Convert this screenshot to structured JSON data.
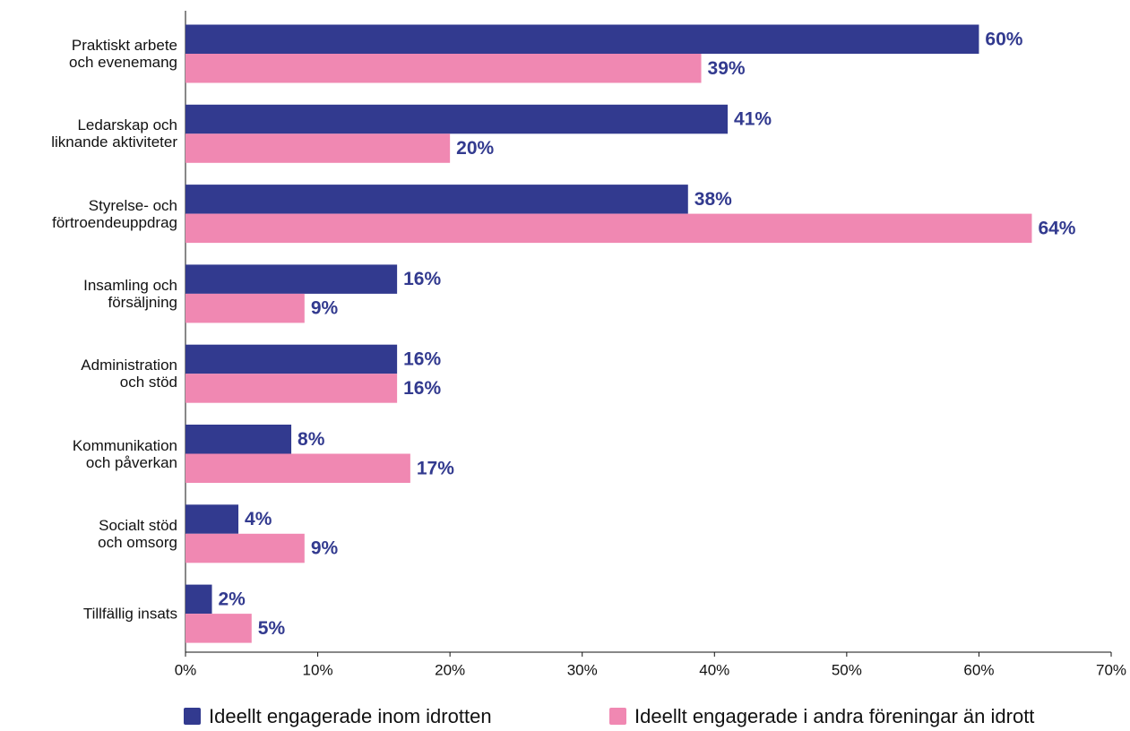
{
  "chart_data": {
    "type": "bar",
    "orientation": "horizontal",
    "categories": [
      "Praktiskt arbete\noch evenemang",
      "Ledarskap och\nliknande aktiviteter",
      "Styrelse- och\nförtroendeuppdrag",
      "Insamling och\nförsäljning",
      "Administration\noch stöd",
      "Kommunikation\noch påverkan",
      "Socialt stöd\noch omsorg",
      "Tillfällig insats"
    ],
    "series": [
      {
        "name": "Ideellt engagerade inom idrotten",
        "color": "#323a8f",
        "values": [
          60,
          41,
          38,
          16,
          16,
          8,
          4,
          2
        ],
        "value_labels": [
          "60%",
          "41%",
          "38%",
          "16%",
          "16%",
          "8%",
          "4%",
          "2%"
        ]
      },
      {
        "name": "Ideellt engagerade i andra föreningar än idrott",
        "color": "#f088b2",
        "values": [
          39,
          20,
          64,
          9,
          16,
          17,
          9,
          5
        ],
        "value_labels": [
          "39%",
          "20%",
          "64%",
          "9%",
          "16%",
          "17%",
          "9%",
          "5%"
        ]
      }
    ],
    "xlim": [
      0,
      70
    ],
    "xticks": [
      {
        "value": 0,
        "label": "0%"
      },
      {
        "value": 10,
        "label": "10%"
      },
      {
        "value": 20,
        "label": "20%"
      },
      {
        "value": 30,
        "label": "30%"
      },
      {
        "value": 40,
        "label": "40%"
      },
      {
        "value": 50,
        "label": "50%"
      },
      {
        "value": 60,
        "label": "60%"
      },
      {
        "value": 70,
        "label": "70%"
      }
    ],
    "legend": "bottom"
  }
}
